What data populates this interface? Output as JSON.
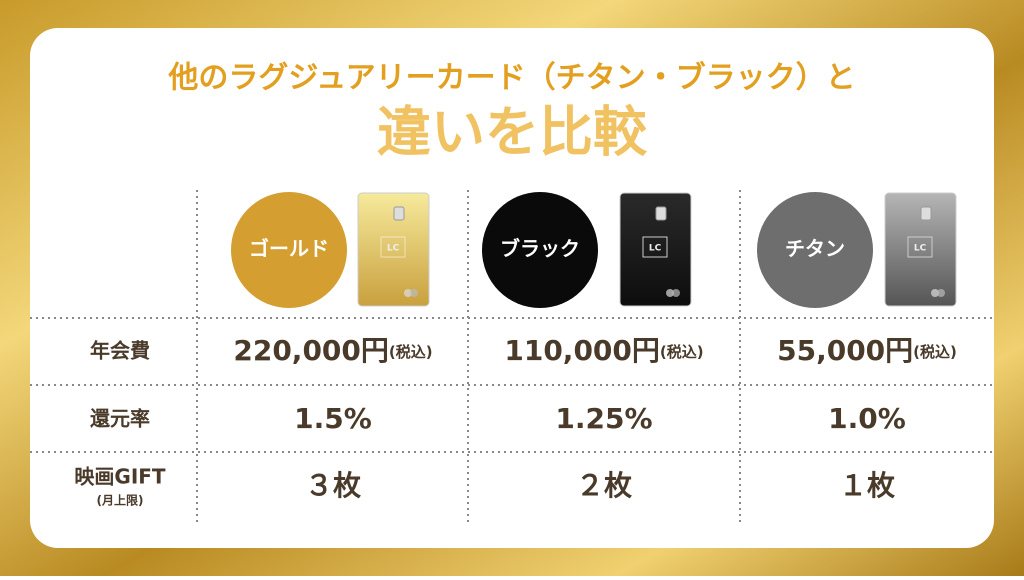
{
  "header": {
    "line1": "他のラグジュアリーカード（チタン・ブラック）と",
    "line2": "違いを比較"
  },
  "columns": [
    {
      "name": "ゴールド",
      "card_logo": "LC"
    },
    {
      "name": "ブラック",
      "card_logo": "LC"
    },
    {
      "name": "チタン",
      "card_logo": "LC"
    }
  ],
  "rows": [
    {
      "label": "年会費",
      "cells": [
        {
          "value": "220,000円",
          "note": "(税込)"
        },
        {
          "value": "110,000円",
          "note": "(税込)"
        },
        {
          "value": "55,000円",
          "note": "(税込)"
        }
      ]
    },
    {
      "label": "還元率",
      "cells": [
        {
          "value": "1.5%"
        },
        {
          "value": "1.25%"
        },
        {
          "value": "1.0%"
        }
      ]
    },
    {
      "label": "映画GIFT",
      "sublabel": "(月上限)",
      "cells": [
        {
          "value": "３枚"
        },
        {
          "value": "２枚"
        },
        {
          "value": "１枚"
        }
      ]
    }
  ]
}
